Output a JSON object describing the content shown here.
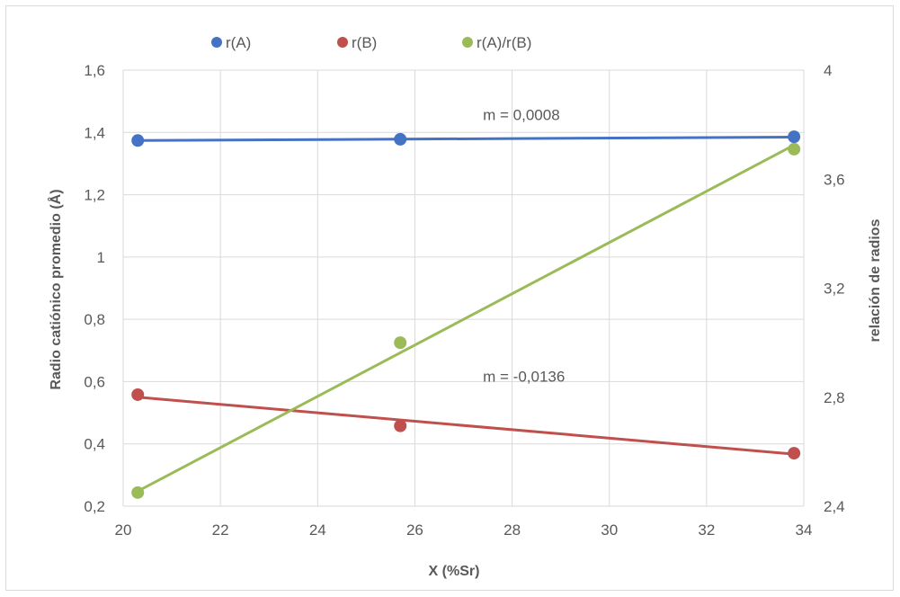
{
  "chart_data": {
    "type": "scatter",
    "xlabel": "X (%Sr)",
    "ylabel": "Radio catiónico promedio (Å)",
    "y2label": "relación de radios",
    "xlim": [
      20,
      34
    ],
    "ylim": [
      0.2,
      1.6
    ],
    "y2lim": [
      2.4,
      4.0
    ],
    "x_ticks": [
      "20",
      "22",
      "24",
      "26",
      "28",
      "30",
      "32",
      "34"
    ],
    "y_ticks": [
      "0,2",
      "0,4",
      "0,6",
      "0,8",
      "1",
      "1,2",
      "1,4",
      "1,6"
    ],
    "y2_ticks": [
      "2,4",
      "2,8",
      "3,2",
      "3,6",
      "4"
    ],
    "grid": true,
    "legend_position": "top",
    "series": [
      {
        "name": "r(A)",
        "axis": "left",
        "color": "#4472c4",
        "x": [
          20.3,
          25.7,
          33.8
        ],
        "y": [
          1.374,
          1.378,
          1.386
        ],
        "trendline": {
          "x": [
            20.3,
            33.8
          ],
          "y": [
            1.374,
            1.385
          ]
        },
        "annotation": {
          "text": "m = 0,0008",
          "x": 27.4,
          "y": 1.44
        }
      },
      {
        "name": "r(B)",
        "axis": "left",
        "color": "#c0504d",
        "x": [
          20.3,
          25.7,
          33.8
        ],
        "y": [
          0.558,
          0.458,
          0.37
        ],
        "trendline": {
          "x": [
            20.3,
            33.8
          ],
          "y": [
            0.55,
            0.367
          ]
        },
        "annotation": {
          "text": "m = -0,0136",
          "x": 27.4,
          "y": 0.6
        }
      },
      {
        "name": "r(A)/r(B)",
        "axis": "right",
        "color": "#9bbb59",
        "x": [
          20.3,
          25.7,
          33.8
        ],
        "y": [
          2.45,
          3.0,
          3.71
        ],
        "trendline": {
          "x": [
            20.3,
            33.8
          ],
          "y": [
            2.455,
            3.725
          ]
        }
      }
    ]
  }
}
